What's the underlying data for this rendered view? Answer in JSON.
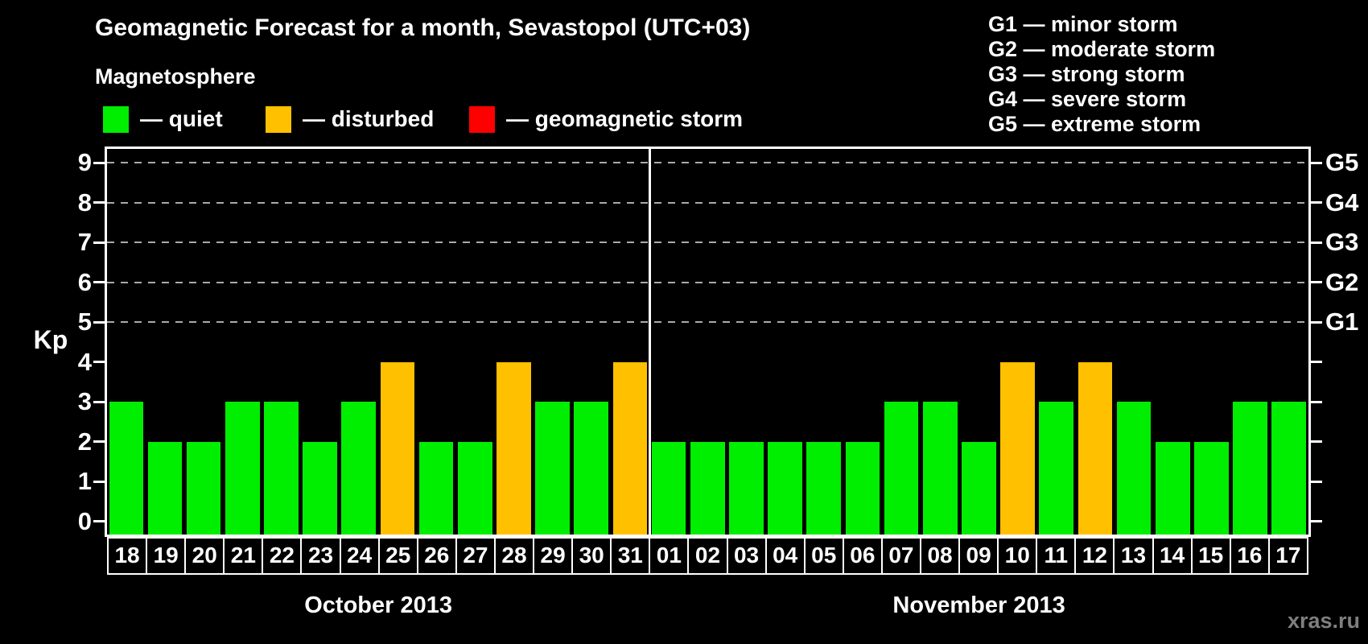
{
  "title": "Geomagnetic Forecast for a month, Sevastopol (UTC+03)",
  "subtitle": "Magnetosphere",
  "legend": {
    "items": [
      {
        "state": "quiet",
        "label": "— quiet"
      },
      {
        "state": "disturbed",
        "label": "— disturbed"
      },
      {
        "state": "storm",
        "label": "— geomagnetic storm"
      }
    ]
  },
  "storm_scale_legend": [
    "G1 — minor storm",
    "G2 — moderate storm",
    "G3 — strong storm",
    "G4 — severe storm",
    "G5 — extreme storm"
  ],
  "colors": {
    "quiet": "#00ee00",
    "disturbed": "#ffc000",
    "storm": "#ff0000",
    "grid": "#aaaaaa",
    "axis": "#ffffff",
    "background": "#000000",
    "watermark": "#7f7f7f"
  },
  "watermark": "xras.ru",
  "chart_data": {
    "type": "bar",
    "title": "Geomagnetic Forecast for a month, Sevastopol (UTC+03)",
    "ylabel": "Kp",
    "ylim": [
      -0.35,
      9.35
    ],
    "yticks": [
      0,
      1,
      2,
      3,
      4,
      5,
      6,
      7,
      8,
      9
    ],
    "gridlines_at_kp": [
      5,
      6,
      7,
      8,
      9
    ],
    "grid": "dashed horizontal at storm levels only",
    "right_axis": [
      {
        "kp": 5,
        "label": "G1"
      },
      {
        "kp": 6,
        "label": "G2"
      },
      {
        "kp": 7,
        "label": "G3"
      },
      {
        "kp": 8,
        "label": "G4"
      },
      {
        "kp": 9,
        "label": "G5"
      }
    ],
    "months": [
      {
        "label": "October 2013",
        "days": [
          {
            "day": "18",
            "kp": 3,
            "state": "quiet"
          },
          {
            "day": "19",
            "kp": 2,
            "state": "quiet"
          },
          {
            "day": "20",
            "kp": 2,
            "state": "quiet"
          },
          {
            "day": "21",
            "kp": 3,
            "state": "quiet"
          },
          {
            "day": "22",
            "kp": 3,
            "state": "quiet"
          },
          {
            "day": "23",
            "kp": 2,
            "state": "quiet"
          },
          {
            "day": "24",
            "kp": 3,
            "state": "quiet"
          },
          {
            "day": "25",
            "kp": 4,
            "state": "disturbed"
          },
          {
            "day": "26",
            "kp": 2,
            "state": "quiet"
          },
          {
            "day": "27",
            "kp": 2,
            "state": "quiet"
          },
          {
            "day": "28",
            "kp": 4,
            "state": "disturbed"
          },
          {
            "day": "29",
            "kp": 3,
            "state": "quiet"
          },
          {
            "day": "30",
            "kp": 3,
            "state": "quiet"
          },
          {
            "day": "31",
            "kp": 4,
            "state": "disturbed"
          }
        ]
      },
      {
        "label": "November 2013",
        "days": [
          {
            "day": "01",
            "kp": 2,
            "state": "quiet"
          },
          {
            "day": "02",
            "kp": 2,
            "state": "quiet"
          },
          {
            "day": "03",
            "kp": 2,
            "state": "quiet"
          },
          {
            "day": "04",
            "kp": 2,
            "state": "quiet"
          },
          {
            "day": "05",
            "kp": 2,
            "state": "quiet"
          },
          {
            "day": "06",
            "kp": 2,
            "state": "quiet"
          },
          {
            "day": "07",
            "kp": 3,
            "state": "quiet"
          },
          {
            "day": "08",
            "kp": 3,
            "state": "quiet"
          },
          {
            "day": "09",
            "kp": 2,
            "state": "quiet"
          },
          {
            "day": "10",
            "kp": 4,
            "state": "disturbed"
          },
          {
            "day": "11",
            "kp": 3,
            "state": "quiet"
          },
          {
            "day": "12",
            "kp": 4,
            "state": "disturbed"
          },
          {
            "day": "13",
            "kp": 3,
            "state": "quiet"
          },
          {
            "day": "14",
            "kp": 2,
            "state": "quiet"
          },
          {
            "day": "15",
            "kp": 2,
            "state": "quiet"
          },
          {
            "day": "16",
            "kp": 3,
            "state": "quiet"
          },
          {
            "day": "17",
            "kp": 3,
            "state": "quiet"
          }
        ]
      }
    ]
  }
}
